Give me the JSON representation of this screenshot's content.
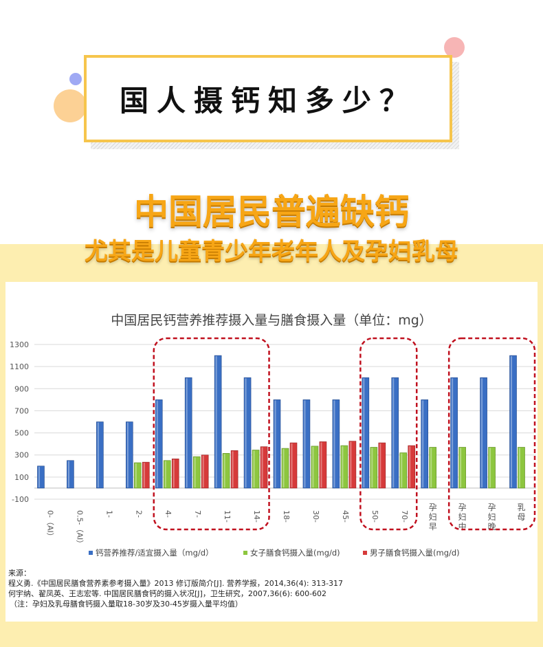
{
  "header": {
    "title": "国人摄钙知多少？",
    "headline": "中国居民普遍缺钙",
    "subheadline": "尤其是儿童青少年老年人及孕妇乳母"
  },
  "colors": {
    "accent": "#f6c54c",
    "band": "#fdeeb0",
    "headline": "#f7a616",
    "recommended": "#3a6fc4",
    "female": "#8dc63f",
    "male": "#d63a3a",
    "highlight": "#c0101e"
  },
  "chart_data": {
    "type": "bar",
    "title": "中国居民钙营养推荐摄入量与膳食摄入量（单位：mg）",
    "categories": [
      "0-（AI）",
      "0.5-（AI）",
      "1-",
      "2-",
      "4-",
      "7-",
      "11-",
      "14-",
      "18-",
      "30-",
      "45-",
      "50-",
      "70-",
      "孕妇早",
      "孕妇中",
      "孕妇晚",
      "乳母"
    ],
    "series": [
      {
        "name": "钙营养推荐/适宜摄入量（mg/d）",
        "values": [
          200,
          250,
          600,
          600,
          800,
          1000,
          1200,
          1000,
          800,
          800,
          800,
          1000,
          1000,
          800,
          1000,
          1000,
          1200
        ]
      },
      {
        "name": "女子膳食钙摄入量(mg/d)",
        "values": [
          null,
          null,
          null,
          230,
          250,
          285,
          315,
          345,
          360,
          380,
          385,
          370,
          320,
          370,
          370,
          370,
          370
        ]
      },
      {
        "name": "男子膳食钙摄入量(mg/d)",
        "values": [
          null,
          null,
          null,
          235,
          265,
          300,
          340,
          375,
          410,
          420,
          425,
          410,
          385,
          null,
          null,
          null,
          null
        ]
      }
    ],
    "ylim": [
      -100,
      1300
    ],
    "yticks": [
      -100,
      100,
      300,
      500,
      700,
      900,
      1100,
      1300
    ],
    "grid": true,
    "legend": "bottom",
    "highlight_groups": [
      [
        4,
        7
      ],
      [
        11,
        12
      ],
      [
        14,
        16
      ]
    ]
  },
  "sources": {
    "label": "来源：",
    "ref1": "程义勇.《中国居民膳食营养素参考摄入量》2013 修订版简介[J]. 营养学报，2014,36(4): 313-317",
    "ref2": "何宇纳、翟凤英、王志宏等. 中国居民膳食钙的摄入状况[J]，卫生研究，2007,36(6): 600-602",
    "note": "（注：孕妇及乳母膳食钙摄入量取18-30岁及30-45岁摄入量平均值）"
  }
}
